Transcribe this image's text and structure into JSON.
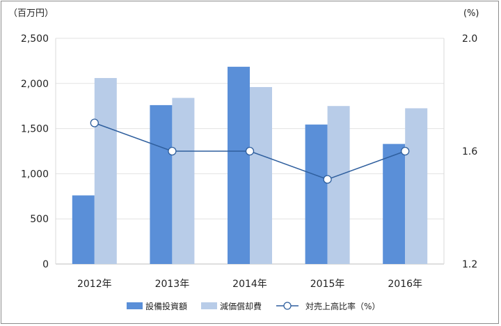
{
  "chart_data": {
    "type": "bar",
    "categories": [
      "2012年",
      "2013年",
      "2014年",
      "2015年",
      "2016年"
    ],
    "series": [
      {
        "name": "設備投資額",
        "kind": "bar",
        "axis": "left",
        "color": "#5a8fd8",
        "values": [
          760,
          1760,
          2185,
          1545,
          1330
        ]
      },
      {
        "name": "減価償却費",
        "kind": "bar",
        "axis": "left",
        "color": "#b8cce8",
        "values": [
          2060,
          1840,
          1960,
          1750,
          1725
        ]
      },
      {
        "name": "対売上高比率（%）",
        "kind": "line",
        "axis": "right",
        "color": "#2f5f9e",
        "values": [
          1.7,
          1.6,
          1.6,
          1.5,
          1.6
        ]
      }
    ],
    "left_axis": {
      "unit_label": "（百万円）",
      "ylim": [
        0,
        2500
      ],
      "ticks": [
        0,
        500,
        1000,
        1500,
        2000,
        2500
      ],
      "tick_labels": [
        "0",
        "500",
        "1,000",
        "1,500",
        "2,000",
        "2,500"
      ]
    },
    "right_axis": {
      "unit_label": "(%)",
      "ylim": [
        1.2,
        2.0
      ],
      "ticks": [
        1.2,
        1.6,
        2.0
      ],
      "tick_labels": [
        "1.2",
        "1.6",
        "2.0"
      ]
    },
    "grid": true,
    "legend": "bottom",
    "legend_labels": [
      "設備投資額",
      "減価償却費",
      "対売上高比率（%）"
    ]
  }
}
